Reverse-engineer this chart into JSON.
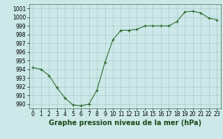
{
  "x": [
    0,
    1,
    2,
    3,
    4,
    5,
    6,
    7,
    8,
    9,
    10,
    11,
    12,
    13,
    14,
    15,
    16,
    17,
    18,
    19,
    20,
    21,
    22,
    23
  ],
  "y": [
    994.2,
    994.0,
    993.3,
    991.9,
    990.7,
    989.9,
    989.8,
    990.0,
    991.6,
    994.8,
    997.4,
    998.5,
    998.5,
    998.6,
    999.0,
    999.0,
    999.0,
    999.0,
    999.5,
    1000.6,
    1000.7,
    1000.5,
    999.9,
    999.7
  ],
  "line_color": "#2d6a2d",
  "marker_color": "#2d6a2d",
  "bg_color": "#cce8e8",
  "grid_color": "#aacccc",
  "title": "Graphe pression niveau de la mer (hPa)",
  "xlim": [
    -0.5,
    23.5
  ],
  "ylim": [
    989.5,
    1001.5
  ],
  "yticks": [
    990,
    991,
    992,
    993,
    994,
    995,
    996,
    997,
    998,
    999,
    1000,
    1001
  ],
  "xticks": [
    0,
    1,
    2,
    3,
    4,
    5,
    6,
    7,
    8,
    9,
    10,
    11,
    12,
    13,
    14,
    15,
    16,
    17,
    18,
    19,
    20,
    21,
    22,
    23
  ],
  "tick_fontsize": 5.5,
  "title_fontsize": 7.0
}
